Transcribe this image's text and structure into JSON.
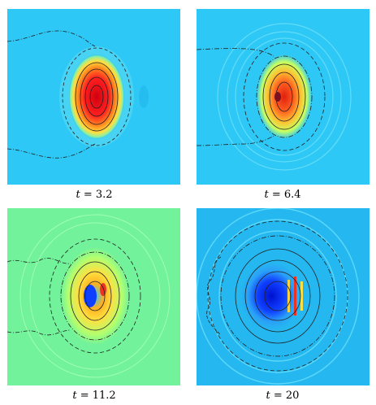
{
  "panels": [
    {
      "caption_var": "t",
      "caption_value": "= 3.2",
      "time": 3.2,
      "background": "#2ec8f6"
    },
    {
      "caption_var": "t",
      "caption_value": "= 6.4",
      "time": 6.4,
      "background": "#2ec8f6"
    },
    {
      "caption_var": "t",
      "caption_value": "= 11.2",
      "time": 11.2,
      "background": "#72f29b"
    },
    {
      "caption_var": "t",
      "caption_value": "= 20",
      "time": 20,
      "background": "#25b8f0"
    }
  ],
  "colormap": [
    "#0000b0",
    "#1040ff",
    "#30c8ff",
    "#80ff90",
    "#ffff40",
    "#ffa020",
    "#f03020",
    "#b00000"
  ]
}
